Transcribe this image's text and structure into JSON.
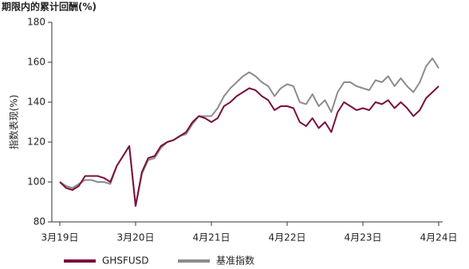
{
  "chart_data": {
    "type": "line",
    "title": "期限内的累计回酬(%)",
    "y_label": "指数表现(%)",
    "x": [
      0,
      1,
      2,
      3,
      4,
      5,
      6,
      7,
      8,
      9,
      10,
      11,
      12,
      13,
      14,
      15,
      16,
      17,
      18,
      19,
      20,
      21,
      22,
      23,
      24,
      25,
      26,
      27,
      28,
      29,
      30,
      31,
      32,
      33,
      34,
      35,
      36,
      37,
      38,
      39,
      40,
      41,
      42,
      43,
      44,
      45,
      46,
      47,
      48,
      49,
      50,
      51,
      52,
      53,
      54,
      55,
      56,
      57,
      58,
      59,
      60
    ],
    "xlim": [
      0,
      60
    ],
    "xticks": [
      {
        "value": 0,
        "label": "3月19日"
      },
      {
        "value": 12,
        "label": "3月20日"
      },
      {
        "value": 24,
        "label": "4月21日"
      },
      {
        "value": 36,
        "label": "4月22日"
      },
      {
        "value": 48,
        "label": "4月23日"
      },
      {
        "value": 60,
        "label": "4月24日"
      }
    ],
    "ylim": [
      80,
      180
    ],
    "yticks": [
      80,
      100,
      120,
      140,
      160,
      180
    ],
    "series": [
      {
        "name": "GHSFUSD",
        "color": "#7a0f3c",
        "values": [
          100,
          97,
          96,
          98,
          103,
          103,
          103,
          102,
          100,
          108,
          113,
          118,
          88,
          105,
          112,
          113,
          118,
          120,
          121,
          123,
          125,
          130,
          133,
          132,
          130,
          132,
          138,
          140,
          143,
          145,
          147,
          146,
          143,
          141,
          136,
          138,
          138,
          137,
          130,
          128,
          132,
          127,
          130,
          125,
          135,
          140,
          138,
          136,
          137,
          136,
          140,
          139,
          141,
          137,
          140,
          137,
          133,
          136,
          142,
          145,
          148
        ]
      },
      {
        "name": "基准指数",
        "color": "#8c8c8c",
        "values": [
          100,
          98,
          97,
          99,
          101,
          101,
          100,
          100,
          99,
          108,
          113,
          118,
          88,
          104,
          111,
          112,
          117,
          120,
          121,
          123,
          124,
          129,
          133,
          133,
          133,
          137,
          143,
          147,
          150,
          153,
          155,
          153,
          150,
          148,
          143,
          147,
          149,
          148,
          140,
          139,
          144,
          138,
          141,
          135,
          145,
          150,
          150,
          148,
          147,
          146,
          151,
          150,
          153,
          148,
          152,
          148,
          145,
          150,
          158,
          162,
          157
        ]
      }
    ]
  }
}
